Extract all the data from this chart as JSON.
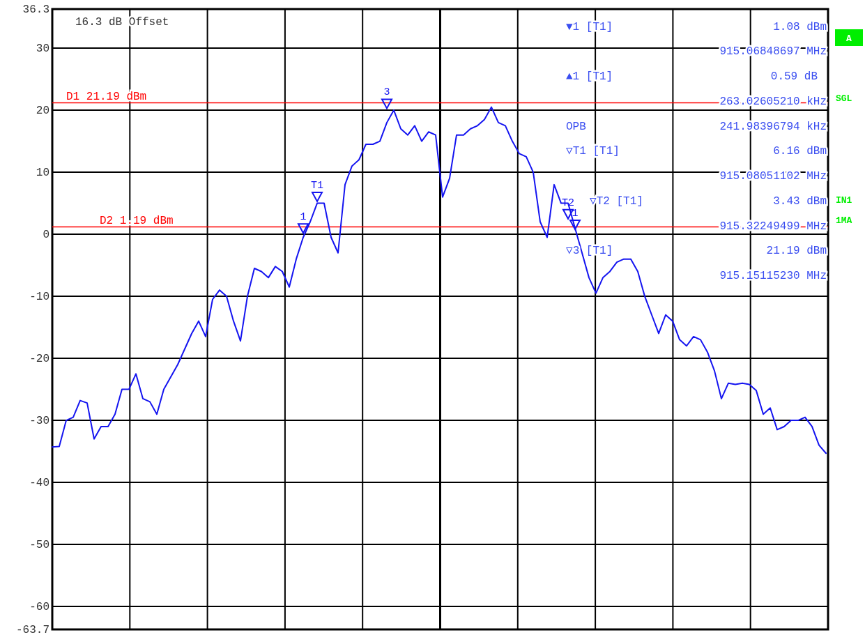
{
  "chart_data": {
    "type": "line",
    "categories": [
      null,
      null,
      null,
      null,
      null,
      null,
      null,
      null,
      null,
      null,
      null,
      null,
      null,
      null,
      null,
      null,
      null,
      null,
      null,
      null,
      null,
      null,
      null,
      null,
      null,
      null,
      null,
      null,
      null,
      null,
      null,
      null,
      null,
      null,
      null,
      null,
      null,
      null,
      null,
      null,
      null,
      null,
      null,
      null,
      null,
      null,
      null,
      null,
      null,
      null,
      null,
      null,
      null,
      null,
      null,
      null,
      null,
      null,
      null,
      null,
      null,
      null,
      null,
      null,
      null,
      null,
      null,
      null,
      null,
      null,
      null,
      null,
      null,
      null,
      null,
      null,
      null,
      null,
      null,
      null,
      null,
      null,
      null,
      null,
      null,
      null,
      null,
      null,
      null,
      null,
      null,
      null,
      null,
      null,
      null,
      null,
      null,
      null,
      null,
      null,
      null,
      null,
      null,
      null,
      null,
      null,
      null,
      null,
      null,
      null,
      null,
      null
    ],
    "series": [
      {
        "color": "#1414f0",
        "values": [
          -34.3,
          -34.2,
          -30,
          -29.5,
          -26.8,
          -27.2,
          -33,
          -31,
          -31,
          -29,
          -25,
          -25,
          -22.5,
          -26.5,
          -27,
          -29,
          -25,
          -23,
          -21,
          -18.5,
          -16,
          -14,
          -16.5,
          -10.5,
          -9,
          -10,
          -14,
          -17.2,
          -10,
          -5.5,
          -6,
          -7,
          -5.2,
          -6,
          -8.5,
          -4,
          -0.5,
          2,
          5,
          5,
          -0.5,
          -3,
          8,
          11,
          12,
          14.5,
          14.5,
          15,
          18,
          20,
          17,
          16,
          17.5,
          15,
          16.5,
          16,
          6,
          9,
          16,
          16,
          17,
          17.5,
          18.5,
          20.5,
          18,
          17.5,
          15,
          13,
          12.5,
          10,
          2,
          -0.5,
          8,
          5,
          5,
          1,
          -3,
          -7,
          -9.5,
          -7,
          -6,
          -4.5,
          -4,
          -4,
          -6,
          -10,
          -13,
          -16,
          -13,
          -14,
          -17,
          -18,
          -16.5,
          -17,
          -19,
          -22,
          -26.5,
          -24,
          -24.2,
          -24,
          -24.2,
          -25.2,
          -29,
          -28,
          -31.5,
          -31,
          -30,
          -30,
          -29.5,
          -31,
          -34,
          -35.3
        ]
      },
      {
        "type": "scatter",
        "name": "1",
        "color": "#1414f0",
        "marker": "triangle",
        "values": [
          null,
          null,
          null,
          null,
          null,
          null,
          null,
          null,
          null,
          null,
          null,
          null,
          null,
          null,
          null,
          null,
          null,
          null,
          null,
          null,
          null,
          null,
          null,
          null,
          null,
          null,
          null,
          null,
          null,
          null,
          null,
          null,
          null,
          null,
          null,
          null,
          1.1,
          null,
          null,
          null,
          null,
          null,
          null,
          null,
          null,
          null,
          null,
          null,
          null,
          null,
          null,
          null,
          null,
          null,
          null,
          null,
          null,
          null,
          null,
          null,
          null,
          null,
          null,
          null,
          null,
          null,
          null,
          null,
          null,
          null,
          null,
          null,
          null,
          null,
          null,
          null,
          null,
          null,
          null,
          null,
          null,
          null,
          null,
          null,
          null,
          null,
          null,
          null,
          null,
          null,
          null,
          null,
          null,
          null,
          null,
          null,
          null,
          null,
          null,
          null,
          null,
          null,
          null,
          null,
          null,
          null,
          null,
          null,
          null,
          null,
          null,
          null
        ]
      },
      {
        "type": "scatter",
        "name": "T1",
        "color": "#1414f0",
        "marker": "triangle",
        "values": [
          null,
          null,
          null,
          null,
          null,
          null,
          null,
          null,
          null,
          null,
          null,
          null,
          null,
          null,
          null,
          null,
          null,
          null,
          null,
          null,
          null,
          null,
          null,
          null,
          null,
          null,
          null,
          null,
          null,
          null,
          null,
          null,
          null,
          null,
          null,
          null,
          null,
          null,
          6.2,
          null,
          null,
          null,
          null,
          null,
          null,
          null,
          null,
          null,
          null,
          null,
          null,
          null,
          null,
          null,
          null,
          null,
          null,
          null,
          null,
          null,
          null,
          null,
          null,
          null,
          null,
          null,
          null,
          null,
          null,
          null,
          null,
          null,
          null,
          null,
          null,
          null,
          null,
          null,
          null,
          null,
          null,
          null,
          null,
          null,
          null,
          null,
          null,
          null,
          null,
          null,
          null,
          null,
          null,
          null,
          null,
          null,
          null,
          null,
          null,
          null,
          null,
          null,
          null,
          null,
          null,
          null,
          null,
          null,
          null,
          null,
          null,
          null
        ]
      },
      {
        "type": "scatter",
        "name": "3",
        "color": "#1414f0",
        "marker": "triangle",
        "values": [
          null,
          null,
          null,
          null,
          null,
          null,
          null,
          null,
          null,
          null,
          null,
          null,
          null,
          null,
          null,
          null,
          null,
          null,
          null,
          null,
          null,
          null,
          null,
          null,
          null,
          null,
          null,
          null,
          null,
          null,
          null,
          null,
          null,
          null,
          null,
          null,
          null,
          null,
          null,
          null,
          null,
          null,
          null,
          null,
          null,
          null,
          null,
          null,
          21.2,
          null,
          null,
          null,
          null,
          null,
          null,
          null,
          null,
          null,
          null,
          null,
          null,
          null,
          null,
          null,
          null,
          null,
          null,
          null,
          null,
          null,
          null,
          null,
          null,
          null,
          null,
          null,
          null,
          null,
          null,
          null,
          null,
          null,
          null,
          null,
          null,
          null,
          null,
          null,
          null,
          null,
          null,
          null,
          null,
          null,
          null,
          null,
          null,
          null,
          null,
          null,
          null,
          null,
          null,
          null,
          null,
          null,
          null,
          null,
          null,
          null,
          null,
          null
        ]
      },
      {
        "type": "scatter",
        "name": "T2",
        "color": "#1414f0",
        "marker": "triangle",
        "values": [
          null,
          null,
          null,
          null,
          null,
          null,
          null,
          null,
          null,
          null,
          null,
          null,
          null,
          null,
          null,
          null,
          null,
          null,
          null,
          null,
          null,
          null,
          null,
          null,
          null,
          null,
          null,
          null,
          null,
          null,
          null,
          null,
          null,
          null,
          null,
          null,
          null,
          null,
          null,
          null,
          null,
          null,
          null,
          null,
          null,
          null,
          null,
          null,
          null,
          null,
          null,
          null,
          null,
          null,
          null,
          null,
          null,
          null,
          null,
          null,
          null,
          null,
          null,
          null,
          null,
          null,
          null,
          null,
          null,
          null,
          null,
          null,
          null,
          null,
          3.4,
          null,
          null,
          null,
          null,
          null,
          null,
          null,
          null,
          null,
          null,
          null,
          null,
          null,
          null,
          null,
          null,
          null,
          null,
          null,
          null,
          null,
          null,
          null,
          null,
          null,
          null,
          null,
          null,
          null,
          null,
          null,
          null,
          null,
          null,
          null,
          null,
          null
        ]
      },
      {
        "type": "scatter",
        "name": "1",
        "color": "#1414f0",
        "marker": "triangle",
        "values": [
          null,
          null,
          null,
          null,
          null,
          null,
          null,
          null,
          null,
          null,
          null,
          null,
          null,
          null,
          null,
          null,
          null,
          null,
          null,
          null,
          null,
          null,
          null,
          null,
          null,
          null,
          null,
          null,
          null,
          null,
          null,
          null,
          null,
          null,
          null,
          null,
          null,
          null,
          null,
          null,
          null,
          null,
          null,
          null,
          null,
          null,
          null,
          null,
          null,
          null,
          null,
          null,
          null,
          null,
          null,
          null,
          null,
          null,
          null,
          null,
          null,
          null,
          null,
          null,
          null,
          null,
          null,
          null,
          null,
          null,
          null,
          null,
          null,
          null,
          null,
          1.7,
          null,
          null,
          null,
          null,
          null,
          null,
          null,
          null,
          null,
          null,
          null,
          null,
          null,
          null,
          null,
          null,
          null,
          null,
          null,
          null,
          null,
          null,
          null,
          null,
          null,
          null,
          null,
          null,
          null,
          null,
          null,
          null,
          null,
          null,
          null,
          null
        ]
      }
    ],
    "ylim": [
      -63.7,
      36.3
    ],
    "yticks": [
      -63.7,
      -60,
      -50,
      -40,
      -30,
      -20,
      -10,
      0,
      10,
      20,
      30,
      36.3
    ],
    "grid": true,
    "tick_labels": "y",
    "ref_lines": [
      {
        "axis": "y",
        "value": 21.19,
        "label": "D1 21.19 dBm",
        "color": "#ff0000"
      },
      {
        "axis": "y",
        "value": 1.19,
        "label": "D2 1.19 dBm",
        "color": "#ff0000"
      }
    ],
    "annotations": [
      "16.3 dB Offset",
      "▼1 [T1]",
      "1.08 dBm",
      "915.06848697 MHz",
      "▲1 [T1]",
      "0.59 dB",
      "263.02605210 kHz",
      "OPB",
      "241.98396794 kHz",
      "▽T1 [T1]",
      "6.16 dBm",
      "915.08051102 MHz",
      "▽T2 [T1]",
      "3.43 dBm",
      "915.32249499 MHz",
      "▽3 [T1]",
      "21.19 dBm",
      "915.15115230 MHz",
      "A",
      "SGL",
      "IN1",
      "1MA"
    ]
  }
}
